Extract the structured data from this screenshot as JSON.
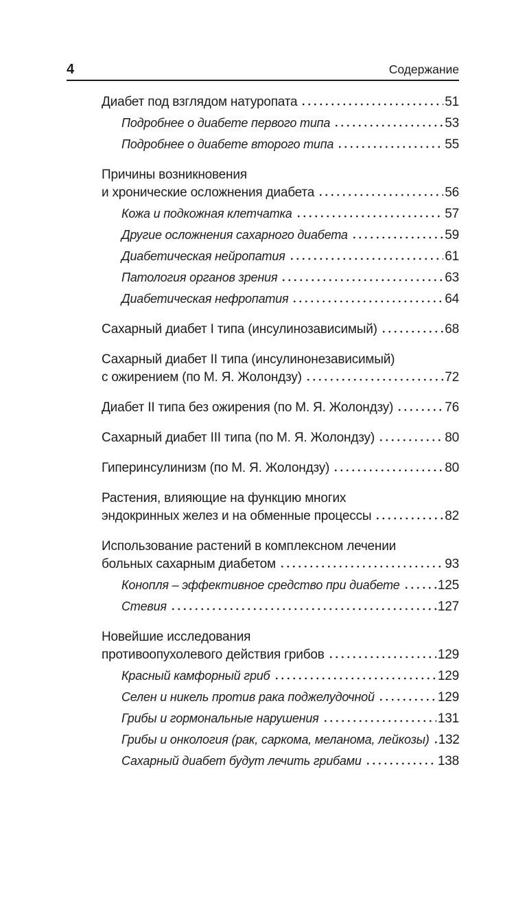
{
  "header": {
    "page_number": "4",
    "title": "Содержание"
  },
  "colors": {
    "background": "#ffffff",
    "text": "#1b1b1b",
    "rule": "#1b1b1b"
  },
  "toc": {
    "entries": [
      {
        "type": "main",
        "group_start": true,
        "lines": [
          "Диабет под взглядом натуропата"
        ],
        "page": "51"
      },
      {
        "type": "sub",
        "group_start": false,
        "lines": [
          "Подробнее о диабете первого типа"
        ],
        "page": "53"
      },
      {
        "type": "sub",
        "group_start": false,
        "lines": [
          "Подробнее о диабете второго типа"
        ],
        "page": "55"
      },
      {
        "type": "main",
        "group_start": true,
        "lines": [
          "Причины возникновения",
          "и хронические осложнения диабета"
        ],
        "page": "56"
      },
      {
        "type": "sub",
        "group_start": false,
        "lines": [
          "Кожа и подкожная клетчатка"
        ],
        "page": "57"
      },
      {
        "type": "sub",
        "group_start": false,
        "lines": [
          "Другие осложнения сахарного диабета"
        ],
        "page": "59"
      },
      {
        "type": "sub",
        "group_start": false,
        "lines": [
          "Диабетическая нейропатия"
        ],
        "page": "61"
      },
      {
        "type": "sub",
        "group_start": false,
        "lines": [
          "Патология органов зрения"
        ],
        "page": "63"
      },
      {
        "type": "sub",
        "group_start": false,
        "lines": [
          "Диабетическая нефропатия"
        ],
        "page": "64"
      },
      {
        "type": "main",
        "group_start": true,
        "lines": [
          "Сахарный диабет I типа (инсулинозависимый)"
        ],
        "page": "68"
      },
      {
        "type": "main",
        "group_start": true,
        "lines": [
          "Сахарный диабет II типа (инсулинонезависимый)",
          "с ожирением (по М. Я. Жолондзу)"
        ],
        "page": "72"
      },
      {
        "type": "main",
        "group_start": true,
        "lines": [
          "Диабет II типа без ожирения (по М. Я. Жолондзу)"
        ],
        "page": "76"
      },
      {
        "type": "main",
        "group_start": true,
        "lines": [
          "Сахарный диабет III типа (по М. Я. Жолондзу)"
        ],
        "page": "80"
      },
      {
        "type": "main",
        "group_start": true,
        "lines": [
          "Гиперинсулинизм (по М. Я. Жолондзу)"
        ],
        "page": "80"
      },
      {
        "type": "main",
        "group_start": true,
        "lines": [
          "Растения, влияющие на функцию многих",
          "эндокринных желез и на обменные процессы"
        ],
        "page": "82"
      },
      {
        "type": "main",
        "group_start": true,
        "lines": [
          "Использование растений в комплексном лечении",
          "больных сахарным диабетом"
        ],
        "page": "93"
      },
      {
        "type": "sub",
        "group_start": false,
        "lines": [
          "Конопля – эффективное средство при диабете"
        ],
        "page": "125"
      },
      {
        "type": "sub",
        "group_start": false,
        "lines": [
          "Стевия"
        ],
        "page": "127"
      },
      {
        "type": "main",
        "group_start": true,
        "lines": [
          "Новейшие исследования",
          "противоопухолевого действия грибов"
        ],
        "page": "129"
      },
      {
        "type": "sub",
        "group_start": false,
        "lines": [
          "Красный камфорный гриб"
        ],
        "page": "129"
      },
      {
        "type": "sub",
        "group_start": false,
        "lines": [
          "Селен и никель против рака поджелудочной"
        ],
        "page": "129"
      },
      {
        "type": "sub",
        "group_start": false,
        "lines": [
          "Грибы и гормональные нарушения"
        ],
        "page": "131"
      },
      {
        "type": "sub",
        "group_start": false,
        "lines": [
          "Грибы и онкология (рак, саркома, меланома, лейкозы)"
        ],
        "page": "132"
      },
      {
        "type": "sub",
        "group_start": false,
        "lines": [
          "Сахарный диабет будут лечить грибами"
        ],
        "page": "138"
      }
    ]
  }
}
